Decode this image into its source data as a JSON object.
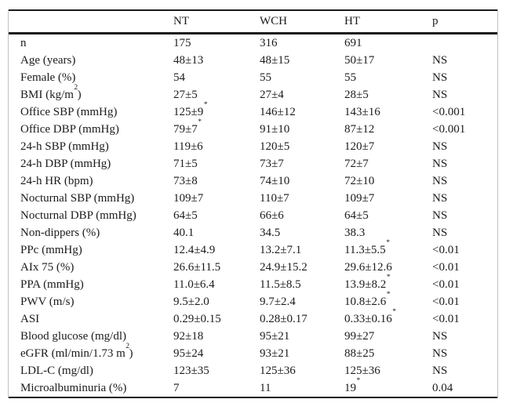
{
  "table": {
    "columns": [
      "",
      "NT",
      "WCH",
      "HT",
      "p"
    ],
    "rows": [
      {
        "label": {
          "pre": "n",
          "sup": "",
          "post": ""
        },
        "cells": [
          {
            "t": "175",
            "s": ""
          },
          {
            "t": "316",
            "s": ""
          },
          {
            "t": "691",
            "s": ""
          },
          {
            "t": "",
            "s": ""
          }
        ]
      },
      {
        "label": {
          "pre": "Age (years)",
          "sup": "",
          "post": ""
        },
        "cells": [
          {
            "t": "48±13",
            "s": ""
          },
          {
            "t": "48±15",
            "s": ""
          },
          {
            "t": "50±17",
            "s": ""
          },
          {
            "t": "NS",
            "s": ""
          }
        ]
      },
      {
        "label": {
          "pre": "Female (%)",
          "sup": "",
          "post": ""
        },
        "cells": [
          {
            "t": "54",
            "s": ""
          },
          {
            "t": "55",
            "s": ""
          },
          {
            "t": "55",
            "s": ""
          },
          {
            "t": "NS",
            "s": ""
          }
        ]
      },
      {
        "label": {
          "pre": "BMI (kg/m",
          "sup": "2",
          "post": ")"
        },
        "cells": [
          {
            "t": "27±5",
            "s": ""
          },
          {
            "t": "27±4",
            "s": ""
          },
          {
            "t": "28±5",
            "s": ""
          },
          {
            "t": "NS",
            "s": ""
          }
        ]
      },
      {
        "label": {
          "pre": "Office SBP (mmHg)",
          "sup": "",
          "post": ""
        },
        "cells": [
          {
            "t": "125±9",
            "s": "*"
          },
          {
            "t": "146±12",
            "s": ""
          },
          {
            "t": "143±16",
            "s": ""
          },
          {
            "t": "<0.001",
            "s": ""
          }
        ]
      },
      {
        "label": {
          "pre": "Office DBP (mmHg)",
          "sup": "",
          "post": ""
        },
        "cells": [
          {
            "t": "79±7",
            "s": "*"
          },
          {
            "t": "91±10",
            "s": ""
          },
          {
            "t": "87±12",
            "s": ""
          },
          {
            "t": "<0.001",
            "s": ""
          }
        ]
      },
      {
        "label": {
          "pre": "24-h SBP (mmHg)",
          "sup": "",
          "post": ""
        },
        "cells": [
          {
            "t": "119±6",
            "s": ""
          },
          {
            "t": "120±5",
            "s": ""
          },
          {
            "t": "120±7",
            "s": ""
          },
          {
            "t": "NS",
            "s": ""
          }
        ]
      },
      {
        "label": {
          "pre": "24-h DBP (mmHg)",
          "sup": "",
          "post": ""
        },
        "cells": [
          {
            "t": "71±5",
            "s": ""
          },
          {
            "t": "73±7",
            "s": ""
          },
          {
            "t": "72±7",
            "s": ""
          },
          {
            "t": "NS",
            "s": ""
          }
        ]
      },
      {
        "label": {
          "pre": "24-h HR (bpm)",
          "sup": "",
          "post": ""
        },
        "cells": [
          {
            "t": "73±8",
            "s": ""
          },
          {
            "t": "74±10",
            "s": ""
          },
          {
            "t": "72±10",
            "s": ""
          },
          {
            "t": "NS",
            "s": ""
          }
        ]
      },
      {
        "label": {
          "pre": "Nocturnal SBP (mmHg)",
          "sup": "",
          "post": ""
        },
        "cells": [
          {
            "t": "109±7",
            "s": ""
          },
          {
            "t": "110±7",
            "s": ""
          },
          {
            "t": "109±7",
            "s": ""
          },
          {
            "t": "NS",
            "s": ""
          }
        ]
      },
      {
        "label": {
          "pre": "Nocturnal DBP (mmHg)",
          "sup": "",
          "post": ""
        },
        "cells": [
          {
            "t": "64±5",
            "s": ""
          },
          {
            "t": "66±6",
            "s": ""
          },
          {
            "t": "64±5",
            "s": ""
          },
          {
            "t": "NS",
            "s": ""
          }
        ]
      },
      {
        "label": {
          "pre": "Non-dippers (%)",
          "sup": "",
          "post": ""
        },
        "cells": [
          {
            "t": "40.1",
            "s": ""
          },
          {
            "t": "34.5",
            "s": ""
          },
          {
            "t": "38.3",
            "s": ""
          },
          {
            "t": "NS",
            "s": ""
          }
        ]
      },
      {
        "label": {
          "pre": "PPc (mmHg)",
          "sup": "",
          "post": ""
        },
        "cells": [
          {
            "t": "12.4±4.9",
            "s": ""
          },
          {
            "t": "13.2±7.1",
            "s": ""
          },
          {
            "t": "11.3±5.5",
            "s": "*"
          },
          {
            "t": "<0.01",
            "s": ""
          }
        ]
      },
      {
        "label": {
          "pre": "AIx 75 (%)",
          "sup": "",
          "post": ""
        },
        "cells": [
          {
            "t": "26.6±11.5",
            "s": ""
          },
          {
            "t": "24.9±15.2",
            "s": ""
          },
          {
            "t": "29.6±12.6",
            "s": ""
          },
          {
            "t": "<0.01",
            "s": ""
          }
        ]
      },
      {
        "label": {
          "pre": "PPA (mmHg)",
          "sup": "",
          "post": ""
        },
        "cells": [
          {
            "t": "11.0±6.4",
            "s": ""
          },
          {
            "t": "11.5±8.5",
            "s": ""
          },
          {
            "t": "13.9±8.2",
            "s": "*"
          },
          {
            "t": "<0.01",
            "s": ""
          }
        ]
      },
      {
        "label": {
          "pre": "PWV (m/s)",
          "sup": "",
          "post": ""
        },
        "cells": [
          {
            "t": "9.5±2.0",
            "s": ""
          },
          {
            "t": "9.7±2.4",
            "s": ""
          },
          {
            "t": "10.8±2.6",
            "s": "*"
          },
          {
            "t": "<0.01",
            "s": ""
          }
        ]
      },
      {
        "label": {
          "pre": "ASI",
          "sup": "",
          "post": ""
        },
        "cells": [
          {
            "t": "0.29±0.15",
            "s": ""
          },
          {
            "t": "0.28±0.17",
            "s": ""
          },
          {
            "t": "0.33±0.16",
            "s": "*"
          },
          {
            "t": "<0.01",
            "s": ""
          }
        ]
      },
      {
        "label": {
          "pre": "Blood glucose (mg/dl)",
          "sup": "",
          "post": ""
        },
        "cells": [
          {
            "t": "92±18",
            "s": ""
          },
          {
            "t": "95±21",
            "s": ""
          },
          {
            "t": "99±27",
            "s": ""
          },
          {
            "t": "NS",
            "s": ""
          }
        ]
      },
      {
        "label": {
          "pre": "eGFR (ml/min/1.73 m",
          "sup": "2",
          "post": ")"
        },
        "cells": [
          {
            "t": "95±24",
            "s": ""
          },
          {
            "t": "93±21",
            "s": ""
          },
          {
            "t": "88±25",
            "s": ""
          },
          {
            "t": "NS",
            "s": ""
          }
        ]
      },
      {
        "label": {
          "pre": "LDL-C (mg/dl)",
          "sup": "",
          "post": ""
        },
        "cells": [
          {
            "t": "123±35",
            "s": ""
          },
          {
            "t": "125±36",
            "s": ""
          },
          {
            "t": "125±36",
            "s": ""
          },
          {
            "t": "NS",
            "s": ""
          }
        ]
      },
      {
        "label": {
          "pre": "Microalbuminuria (%)",
          "sup": "",
          "post": ""
        },
        "cells": [
          {
            "t": "7",
            "s": ""
          },
          {
            "t": "11",
            "s": ""
          },
          {
            "t": "19",
            "s": "*"
          },
          {
            "t": "0.04",
            "s": ""
          }
        ]
      }
    ]
  }
}
